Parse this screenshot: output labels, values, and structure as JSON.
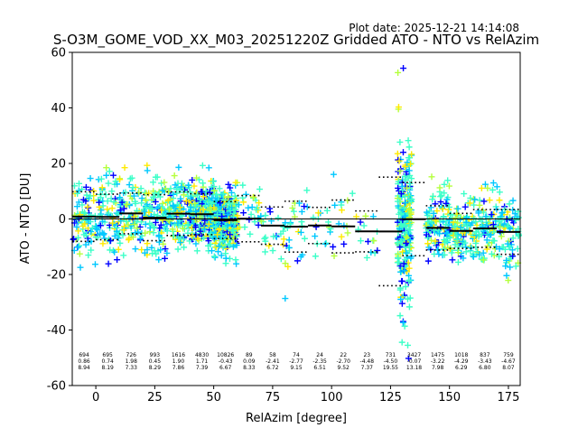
{
  "header": {
    "plot_date": "Plot date: 2025-12-21 14:14:08",
    "title": "S-O3M_GOME_VOD_XX_M03_20251220Z Gridded ATO - NTO vs RelAzim"
  },
  "chart_data": {
    "type": "scatter",
    "title": "S-O3M_GOME_VOD_XX_M03_20251220Z Gridded ATO - NTO vs RelAzim",
    "xlabel": "RelAzim [degree]",
    "ylabel": "ATO - NTO [DU]",
    "xlim": [
      -10,
      180
    ],
    "ylim": [
      -60,
      60
    ],
    "xticks": [
      "0",
      "25",
      "50",
      "75",
      "100",
      "125",
      "150",
      "175"
    ],
    "xtick_values": [
      0,
      25,
      50,
      75,
      100,
      125,
      150,
      175
    ],
    "yticks": [
      "-60",
      "-40",
      "-20",
      "0",
      "20",
      "40",
      "60"
    ],
    "ytick_values": [
      -60,
      -40,
      -20,
      0,
      20,
      40,
      60
    ],
    "marker": "+",
    "grid": false,
    "zero_line": true,
    "colors": {
      "blue": "#0000ff",
      "cyan": "#00c8ff",
      "aquamarine": "#3cffc8",
      "yellow": "#ffea00",
      "orange": "#ffb000",
      "lime": "#b4ff3c"
    },
    "bins": {
      "centers": [
        -5,
        5,
        15,
        25,
        35,
        45,
        55,
        65,
        75,
        85,
        95,
        105,
        115,
        125,
        135,
        145,
        155,
        165,
        175
      ],
      "counts": [
        "694",
        "695",
        "726",
        "993",
        "1616",
        "4830",
        "10826",
        "89",
        "58",
        "74",
        "24",
        "22",
        "23",
        "731",
        "3427",
        "1475",
        "1018",
        "837",
        "759"
      ],
      "means": [
        "0.86",
        "0.74",
        "1.98",
        "0.45",
        "1.90",
        "1.71",
        "-0.43",
        "0.09",
        "-2.41",
        "-2.77",
        "-2.35",
        "-2.70",
        "-4.48",
        "-4.50",
        "-0.07",
        "-3.22",
        "-4.29",
        "-3.43",
        "-4.67"
      ],
      "stds": [
        "8.94",
        "8.19",
        "7.33",
        "8.29",
        "7.86",
        "7.39",
        "6.67",
        "8.33",
        "6.72",
        "9.15",
        "6.51",
        "9.52",
        "7.37",
        "19.55",
        "13.18",
        "7.98",
        "6.29",
        "6.80",
        "8.07"
      ]
    }
  }
}
